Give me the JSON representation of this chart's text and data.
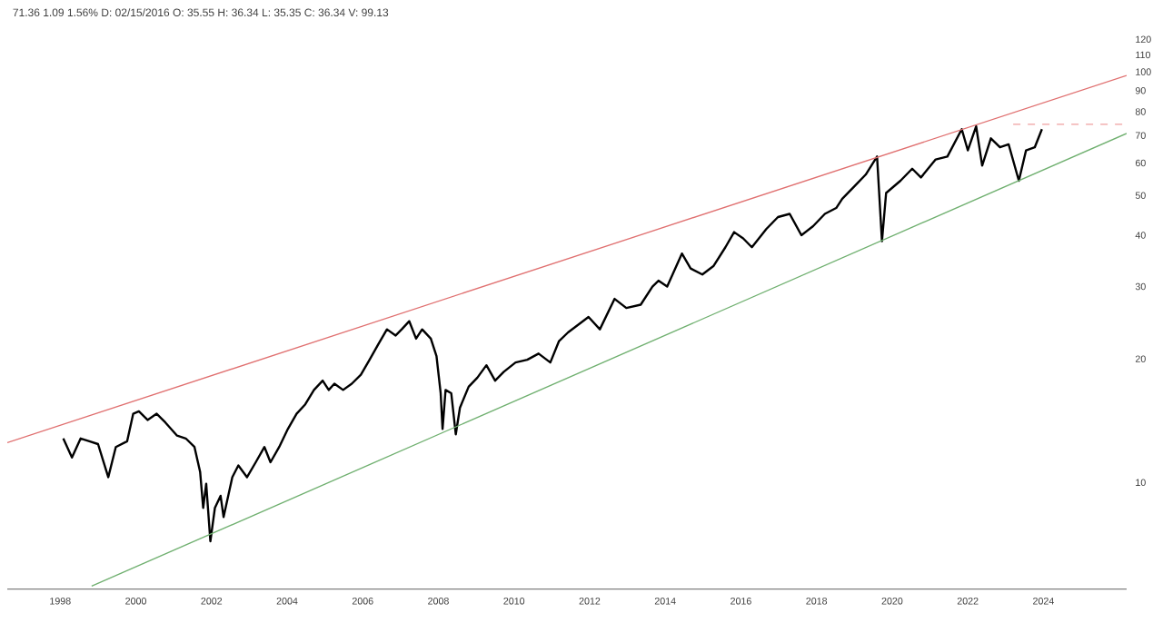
{
  "chart_data": {
    "type": "line",
    "title": "71.36 1.09 1.56% D: 02/15/2016 O: 35.55 H: 36.34 L: 35.35 C: 36.34 V: 99.13",
    "log": "y",
    "marker": "none",
    "xlim": [
      1996.6,
      2026.2
    ],
    "xticks": [
      1998,
      2000,
      2002,
      2004,
      2006,
      2008,
      2010,
      2012,
      2014,
      2016,
      2018,
      2020,
      2022,
      2024
    ],
    "ylim": [
      5.5,
      120
    ],
    "yticks": [
      10,
      20,
      30,
      40,
      50,
      60,
      70,
      80,
      90,
      100,
      110,
      120
    ],
    "series": [
      {
        "color": "#000000",
        "line_style": "solid",
        "x": [
          1998.08,
          1998.31,
          1998.54,
          1998.77,
          1999.0,
          1999.27,
          1999.47,
          1999.77,
          1999.93,
          2000.08,
          2000.31,
          2000.55,
          2000.78,
          2001.09,
          2001.32,
          2001.55,
          2001.7,
          2001.78,
          2001.86,
          2001.97,
          2002.09,
          2002.24,
          2002.32,
          2002.55,
          2002.71,
          2002.94,
          2003.17,
          2003.4,
          2003.56,
          2003.79,
          2004.02,
          2004.25,
          2004.48,
          2004.71,
          2004.94,
          2005.1,
          2005.25,
          2005.48,
          2005.71,
          2005.95,
          2006.18,
          2006.41,
          2006.64,
          2006.87,
          2007.03,
          2007.23,
          2007.41,
          2007.57,
          2007.8,
          2007.95,
          2008.06,
          2008.11,
          2008.19,
          2008.34,
          2008.46,
          2008.57,
          2008.8,
          2009.03,
          2009.27,
          2009.5,
          2009.73,
          2010.04,
          2010.35,
          2010.65,
          2010.96,
          2011.19,
          2011.43,
          2011.97,
          2012.27,
          2012.66,
          2012.97,
          2013.35,
          2013.66,
          2013.82,
          2014.05,
          2014.44,
          2014.67,
          2014.98,
          2015.28,
          2015.59,
          2015.82,
          2016.06,
          2016.29,
          2016.67,
          2016.98,
          2017.29,
          2017.6,
          2017.91,
          2018.22,
          2018.52,
          2018.68,
          2018.99,
          2019.3,
          2019.6,
          2019.73,
          2019.84,
          2020.22,
          2020.53,
          2020.76,
          2021.15,
          2021.46,
          2021.84,
          2022.0,
          2022.22,
          2022.38,
          2022.61,
          2022.85,
          2023.08,
          2023.35,
          2023.54,
          2023.77,
          2023.96
        ],
        "values": [
          12.8,
          11.5,
          12.8,
          12.6,
          12.4,
          10.3,
          12.2,
          12.6,
          14.7,
          14.9,
          14.2,
          14.7,
          14.0,
          13.0,
          12.8,
          12.2,
          10.6,
          8.67,
          9.93,
          7.19,
          8.67,
          9.28,
          8.24,
          10.3,
          11.0,
          10.3,
          11.2,
          12.2,
          11.2,
          12.2,
          13.5,
          14.7,
          15.5,
          16.8,
          17.7,
          16.8,
          17.4,
          16.8,
          17.4,
          18.3,
          19.9,
          21.7,
          23.6,
          22.8,
          23.6,
          24.7,
          22.4,
          23.6,
          22.4,
          20.3,
          16.5,
          13.5,
          16.8,
          16.5,
          13.1,
          15.2,
          17.1,
          18.0,
          19.3,
          17.7,
          18.6,
          19.6,
          19.9,
          20.6,
          19.6,
          22.1,
          23.2,
          25.3,
          23.6,
          28.0,
          26.6,
          27.1,
          30.0,
          31.0,
          30.0,
          36.1,
          33.2,
          32.1,
          33.7,
          37.4,
          40.7,
          39.3,
          37.4,
          41.4,
          44.3,
          45.1,
          40.0,
          42.1,
          45.1,
          46.6,
          49.1,
          52.5,
          56.2,
          62.2,
          38.7,
          50.7,
          54.3,
          58.1,
          55.3,
          61.2,
          62.2,
          72.5,
          64.4,
          73.7,
          59.1,
          68.9,
          65.5,
          66.6,
          54.3,
          64.4,
          65.5,
          72.5
        ]
      },
      {
        "color": "#e07070",
        "line_style": "solid",
        "x": [
          1996.6,
          2026.2
        ],
        "values": [
          12.5,
          98
        ]
      },
      {
        "color": "#70b070",
        "line_style": "solid",
        "x": [
          1998.83,
          2026.2
        ],
        "values": [
          5.59,
          70.8
        ]
      },
      {
        "color": "#f0a0a0",
        "line_style": "dashed",
        "x": [
          2023.2,
          2026.2
        ],
        "values": [
          74.5,
          74.5
        ]
      }
    ]
  }
}
